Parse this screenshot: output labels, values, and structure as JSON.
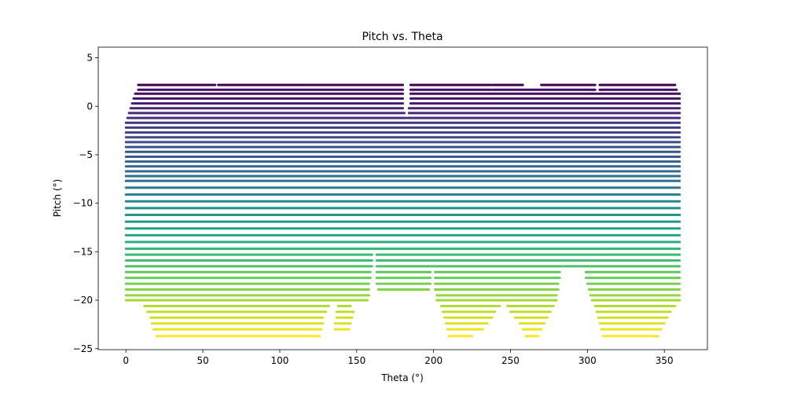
{
  "chart_data": {
    "type": "scatter",
    "title": "Pitch vs. Theta",
    "xlabel": "Theta (°)",
    "ylabel": "Pitch (°)",
    "xlim": [
      -18,
      378
    ],
    "ylim": [
      -25.1,
      6.1
    ],
    "xticks": [
      0,
      50,
      100,
      150,
      200,
      250,
      300,
      350
    ],
    "yticks": [
      5,
      0,
      -5,
      -10,
      -15,
      -20,
      -25
    ],
    "grid": false,
    "legend": "none",
    "colormap": "viridis",
    "color_by": "pitch",
    "series": [
      {
        "description": "scan rings: each ring is a horizontal band of points at a constant pitch, spanning theta ranges",
        "rings": [
          {
            "pitch": 2.2,
            "ranges": [
              [
                8,
                58
              ],
              [
                60,
                180
              ],
              [
                185,
                237
              ],
              [
                238,
                258
              ],
              [
                270,
                305
              ],
              [
                308,
                357
              ]
            ]
          },
          {
            "pitch": 1.7,
            "ranges": [
              [
                8,
                180
              ],
              [
                185,
                237
              ],
              [
                238,
                305
              ],
              [
                308,
                358
              ]
            ]
          },
          {
            "pitch": 1.3,
            "ranges": [
              [
                6,
                180
              ],
              [
                185,
                360
              ]
            ]
          },
          {
            "pitch": 0.8,
            "ranges": [
              [
                5,
                180
              ],
              [
                185,
                360
              ]
            ]
          },
          {
            "pitch": 0.3,
            "ranges": [
              [
                4,
                180
              ],
              [
                185,
                360
              ]
            ]
          },
          {
            "pitch": -0.2,
            "ranges": [
              [
                3,
                180
              ],
              [
                184,
                360
              ]
            ]
          },
          {
            "pitch": -0.7,
            "ranges": [
              [
                2,
                181
              ],
              [
                184,
                360
              ]
            ]
          },
          {
            "pitch": -1.2,
            "ranges": [
              [
                1,
                182
              ],
              [
                183,
                360
              ]
            ]
          },
          {
            "pitch": -1.7,
            "ranges": [
              [
                0,
                360
              ]
            ]
          },
          {
            "pitch": -2.2,
            "ranges": [
              [
                0,
                360
              ]
            ]
          },
          {
            "pitch": -2.7,
            "ranges": [
              [
                0,
                360
              ]
            ]
          },
          {
            "pitch": -3.2,
            "ranges": [
              [
                0,
                360
              ]
            ]
          },
          {
            "pitch": -3.7,
            "ranges": [
              [
                0,
                360
              ]
            ]
          },
          {
            "pitch": -4.2,
            "ranges": [
              [
                0,
                360
              ]
            ]
          },
          {
            "pitch": -4.7,
            "ranges": [
              [
                0,
                360
              ]
            ]
          },
          {
            "pitch": -5.2,
            "ranges": [
              [
                0,
                360
              ]
            ]
          },
          {
            "pitch": -5.7,
            "ranges": [
              [
                0,
                360
              ]
            ]
          },
          {
            "pitch": -6.2,
            "ranges": [
              [
                0,
                360
              ]
            ]
          },
          {
            "pitch": -6.7,
            "ranges": [
              [
                0,
                360
              ]
            ]
          },
          {
            "pitch": -7.2,
            "ranges": [
              [
                0,
                360
              ]
            ]
          },
          {
            "pitch": -7.7,
            "ranges": [
              [
                0,
                360
              ]
            ]
          },
          {
            "pitch": -8.4,
            "ranges": [
              [
                0,
                360
              ]
            ]
          },
          {
            "pitch": -9.1,
            "ranges": [
              [
                0,
                360
              ]
            ]
          },
          {
            "pitch": -9.8,
            "ranges": [
              [
                0,
                360
              ]
            ]
          },
          {
            "pitch": -10.5,
            "ranges": [
              [
                0,
                360
              ]
            ]
          },
          {
            "pitch": -11.2,
            "ranges": [
              [
                0,
                360
              ]
            ]
          },
          {
            "pitch": -11.9,
            "ranges": [
              [
                0,
                360
              ]
            ]
          },
          {
            "pitch": -12.6,
            "ranges": [
              [
                0,
                360
              ]
            ]
          },
          {
            "pitch": -13.3,
            "ranges": [
              [
                0,
                360
              ]
            ]
          },
          {
            "pitch": -14.0,
            "ranges": [
              [
                0,
                360
              ]
            ]
          },
          {
            "pitch": -14.7,
            "ranges": [
              [
                0,
                360
              ]
            ]
          },
          {
            "pitch": -15.3,
            "ranges": [
              [
                0,
                160
              ],
              [
                163,
                360
              ]
            ]
          },
          {
            "pitch": -15.9,
            "ranges": [
              [
                0,
                160
              ],
              [
                163,
                360
              ]
            ]
          },
          {
            "pitch": -16.5,
            "ranges": [
              [
                0,
                160
              ],
              [
                163,
                360
              ]
            ]
          },
          {
            "pitch": -17.1,
            "ranges": [
              [
                0,
                159
              ],
              [
                163,
                198
              ],
              [
                201,
                282
              ],
              [
                299,
                360
              ]
            ]
          },
          {
            "pitch": -17.7,
            "ranges": [
              [
                0,
                159
              ],
              [
                163,
                198
              ],
              [
                201,
                282
              ],
              [
                299,
                360
              ]
            ]
          },
          {
            "pitch": -18.3,
            "ranges": [
              [
                0,
                158
              ],
              [
                163,
                198
              ],
              [
                201,
                281
              ],
              [
                300,
                360
              ]
            ]
          },
          {
            "pitch": -18.9,
            "ranges": [
              [
                0,
                158
              ],
              [
                164,
                197
              ],
              [
                201,
                281
              ],
              [
                301,
                360
              ]
            ]
          },
          {
            "pitch": -19.5,
            "ranges": [
              [
                0,
                158
              ],
              [
                202,
                280
              ],
              [
                302,
                360
              ]
            ]
          },
          {
            "pitch": -20.0,
            "ranges": [
              [
                0,
                157
              ],
              [
                202,
                280
              ],
              [
                303,
                360
              ]
            ]
          },
          {
            "pitch": -20.6,
            "ranges": [
              [
                12,
                132
              ],
              [
                138,
                146
              ],
              [
                205,
                243
              ],
              [
                248,
                278
              ],
              [
                305,
                357
              ]
            ]
          },
          {
            "pitch": -21.2,
            "ranges": [
              [
                14,
                130
              ],
              [
                137,
                148
              ],
              [
                206,
                240
              ],
              [
                250,
                276
              ],
              [
                306,
                354
              ]
            ]
          },
          {
            "pitch": -21.8,
            "ranges": [
              [
                16,
                128
              ],
              [
                137,
                147
              ],
              [
                207,
                238
              ],
              [
                253,
                274
              ],
              [
                307,
                352
              ]
            ]
          },
          {
            "pitch": -22.4,
            "ranges": [
              [
                17,
                128
              ],
              [
                136,
                146
              ],
              [
                208,
                235
              ],
              [
                256,
                272
              ],
              [
                308,
                350
              ]
            ]
          },
          {
            "pitch": -23.0,
            "ranges": [
              [
                18,
                127
              ],
              [
                136,
                145
              ],
              [
                209,
                232
              ],
              [
                258,
                270
              ],
              [
                309,
                348
              ]
            ]
          },
          {
            "pitch": -23.7,
            "ranges": [
              [
                20,
                126
              ],
              [
                210,
                225
              ],
              [
                260,
                268
              ],
              [
                310,
                346
              ]
            ]
          }
        ]
      }
    ]
  }
}
